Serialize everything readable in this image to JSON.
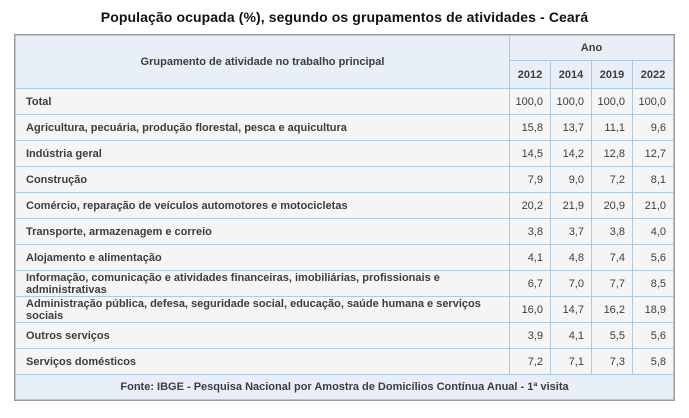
{
  "title": "População ocupada (%), segundo os grupamentos de atividades - Ceará",
  "table": {
    "col_header": "Grupamento de atividade no trabalho principal",
    "year_group_header": "Ano",
    "years": [
      "2012",
      "2014",
      "2019",
      "2022"
    ],
    "rows": [
      {
        "label": "Total",
        "values": [
          "100,0",
          "100,0",
          "100,0",
          "100,0"
        ]
      },
      {
        "label": "Agricultura, pecuária, produção florestal, pesca e aquicultura",
        "values": [
          "15,8",
          "13,7",
          "11,1",
          "9,6"
        ]
      },
      {
        "label": "Indústria geral",
        "values": [
          "14,5",
          "14,2",
          "12,8",
          "12,7"
        ]
      },
      {
        "label": "Construção",
        "values": [
          "7,9",
          "9,0",
          "7,2",
          "8,1"
        ]
      },
      {
        "label": "Comércio, reparação de veículos automotores e motocicletas",
        "values": [
          "20,2",
          "21,9",
          "20,9",
          "21,0"
        ]
      },
      {
        "label": "Transporte, armazenagem e correio",
        "values": [
          "3,8",
          "3,7",
          "3,8",
          "4,0"
        ]
      },
      {
        "label": "Alojamento e alimentação",
        "values": [
          "4,1",
          "4,8",
          "7,4",
          "5,6"
        ]
      },
      {
        "label": "Informação, comunicação e atividades financeiras, imobiliárias, profissionais e administrativas",
        "values": [
          "6,7",
          "7,0",
          "7,7",
          "8,5"
        ]
      },
      {
        "label": "Administração pública, defesa, seguridade social, educação, saúde humana e serviços sociais",
        "values": [
          "16,0",
          "14,7",
          "16,2",
          "18,9"
        ]
      },
      {
        "label": "Outros serviços",
        "values": [
          "3,9",
          "4,1",
          "5,5",
          "5,6"
        ]
      },
      {
        "label": "Serviços domésticos",
        "values": [
          "7,2",
          "7,1",
          "7,3",
          "5,8"
        ]
      }
    ],
    "footer": "Fonte: IBGE - Pesquisa Nacional por Amostra de Domicílios Contínua Anual - 1ª visita"
  },
  "colors": {
    "header_bg": "#e9eff6",
    "footer_bg": "#e9eff6",
    "row_bg": "#f5f5f5",
    "border_inner": "#b0c9de",
    "border_outer": "#9a9a9a",
    "text": "#3d3d3d",
    "title_text": "#111111"
  },
  "chart_data": {
    "type": "table",
    "title": "População ocupada (%), segundo os grupamentos de atividades - Ceará",
    "row_header": "Grupamento de atividade no trabalho principal",
    "column_group": "Ano",
    "columns": [
      "2012",
      "2014",
      "2019",
      "2022"
    ],
    "rows": [
      {
        "category": "Total",
        "values": [
          100.0,
          100.0,
          100.0,
          100.0
        ]
      },
      {
        "category": "Agricultura, pecuária, produção florestal, pesca e aquicultura",
        "values": [
          15.8,
          13.7,
          11.1,
          9.6
        ]
      },
      {
        "category": "Indústria geral",
        "values": [
          14.5,
          14.2,
          12.8,
          12.7
        ]
      },
      {
        "category": "Construção",
        "values": [
          7.9,
          9.0,
          7.2,
          8.1
        ]
      },
      {
        "category": "Comércio, reparação de veículos automotores e motocicletas",
        "values": [
          20.2,
          21.9,
          20.9,
          21.0
        ]
      },
      {
        "category": "Transporte, armazenagem e correio",
        "values": [
          3.8,
          3.7,
          3.8,
          4.0
        ]
      },
      {
        "category": "Alojamento e alimentação",
        "values": [
          4.1,
          4.8,
          7.4,
          5.6
        ]
      },
      {
        "category": "Informação, comunicação e atividades financeiras, imobiliárias, profissionais e administrativas",
        "values": [
          6.7,
          7.0,
          7.7,
          8.5
        ]
      },
      {
        "category": "Administração pública, defesa, seguridade social, educação, saúde humana e serviços sociais",
        "values": [
          16.0,
          14.7,
          16.2,
          18.9
        ]
      },
      {
        "category": "Outros serviços",
        "values": [
          3.9,
          4.1,
          5.5,
          5.6
        ]
      },
      {
        "category": "Serviços domésticos",
        "values": [
          7.2,
          7.1,
          7.3,
          5.8
        ]
      }
    ],
    "source": "Fonte: IBGE - Pesquisa Nacional por Amostra de Domicílios Contínua Anual - 1ª visita",
    "unit": "%"
  }
}
